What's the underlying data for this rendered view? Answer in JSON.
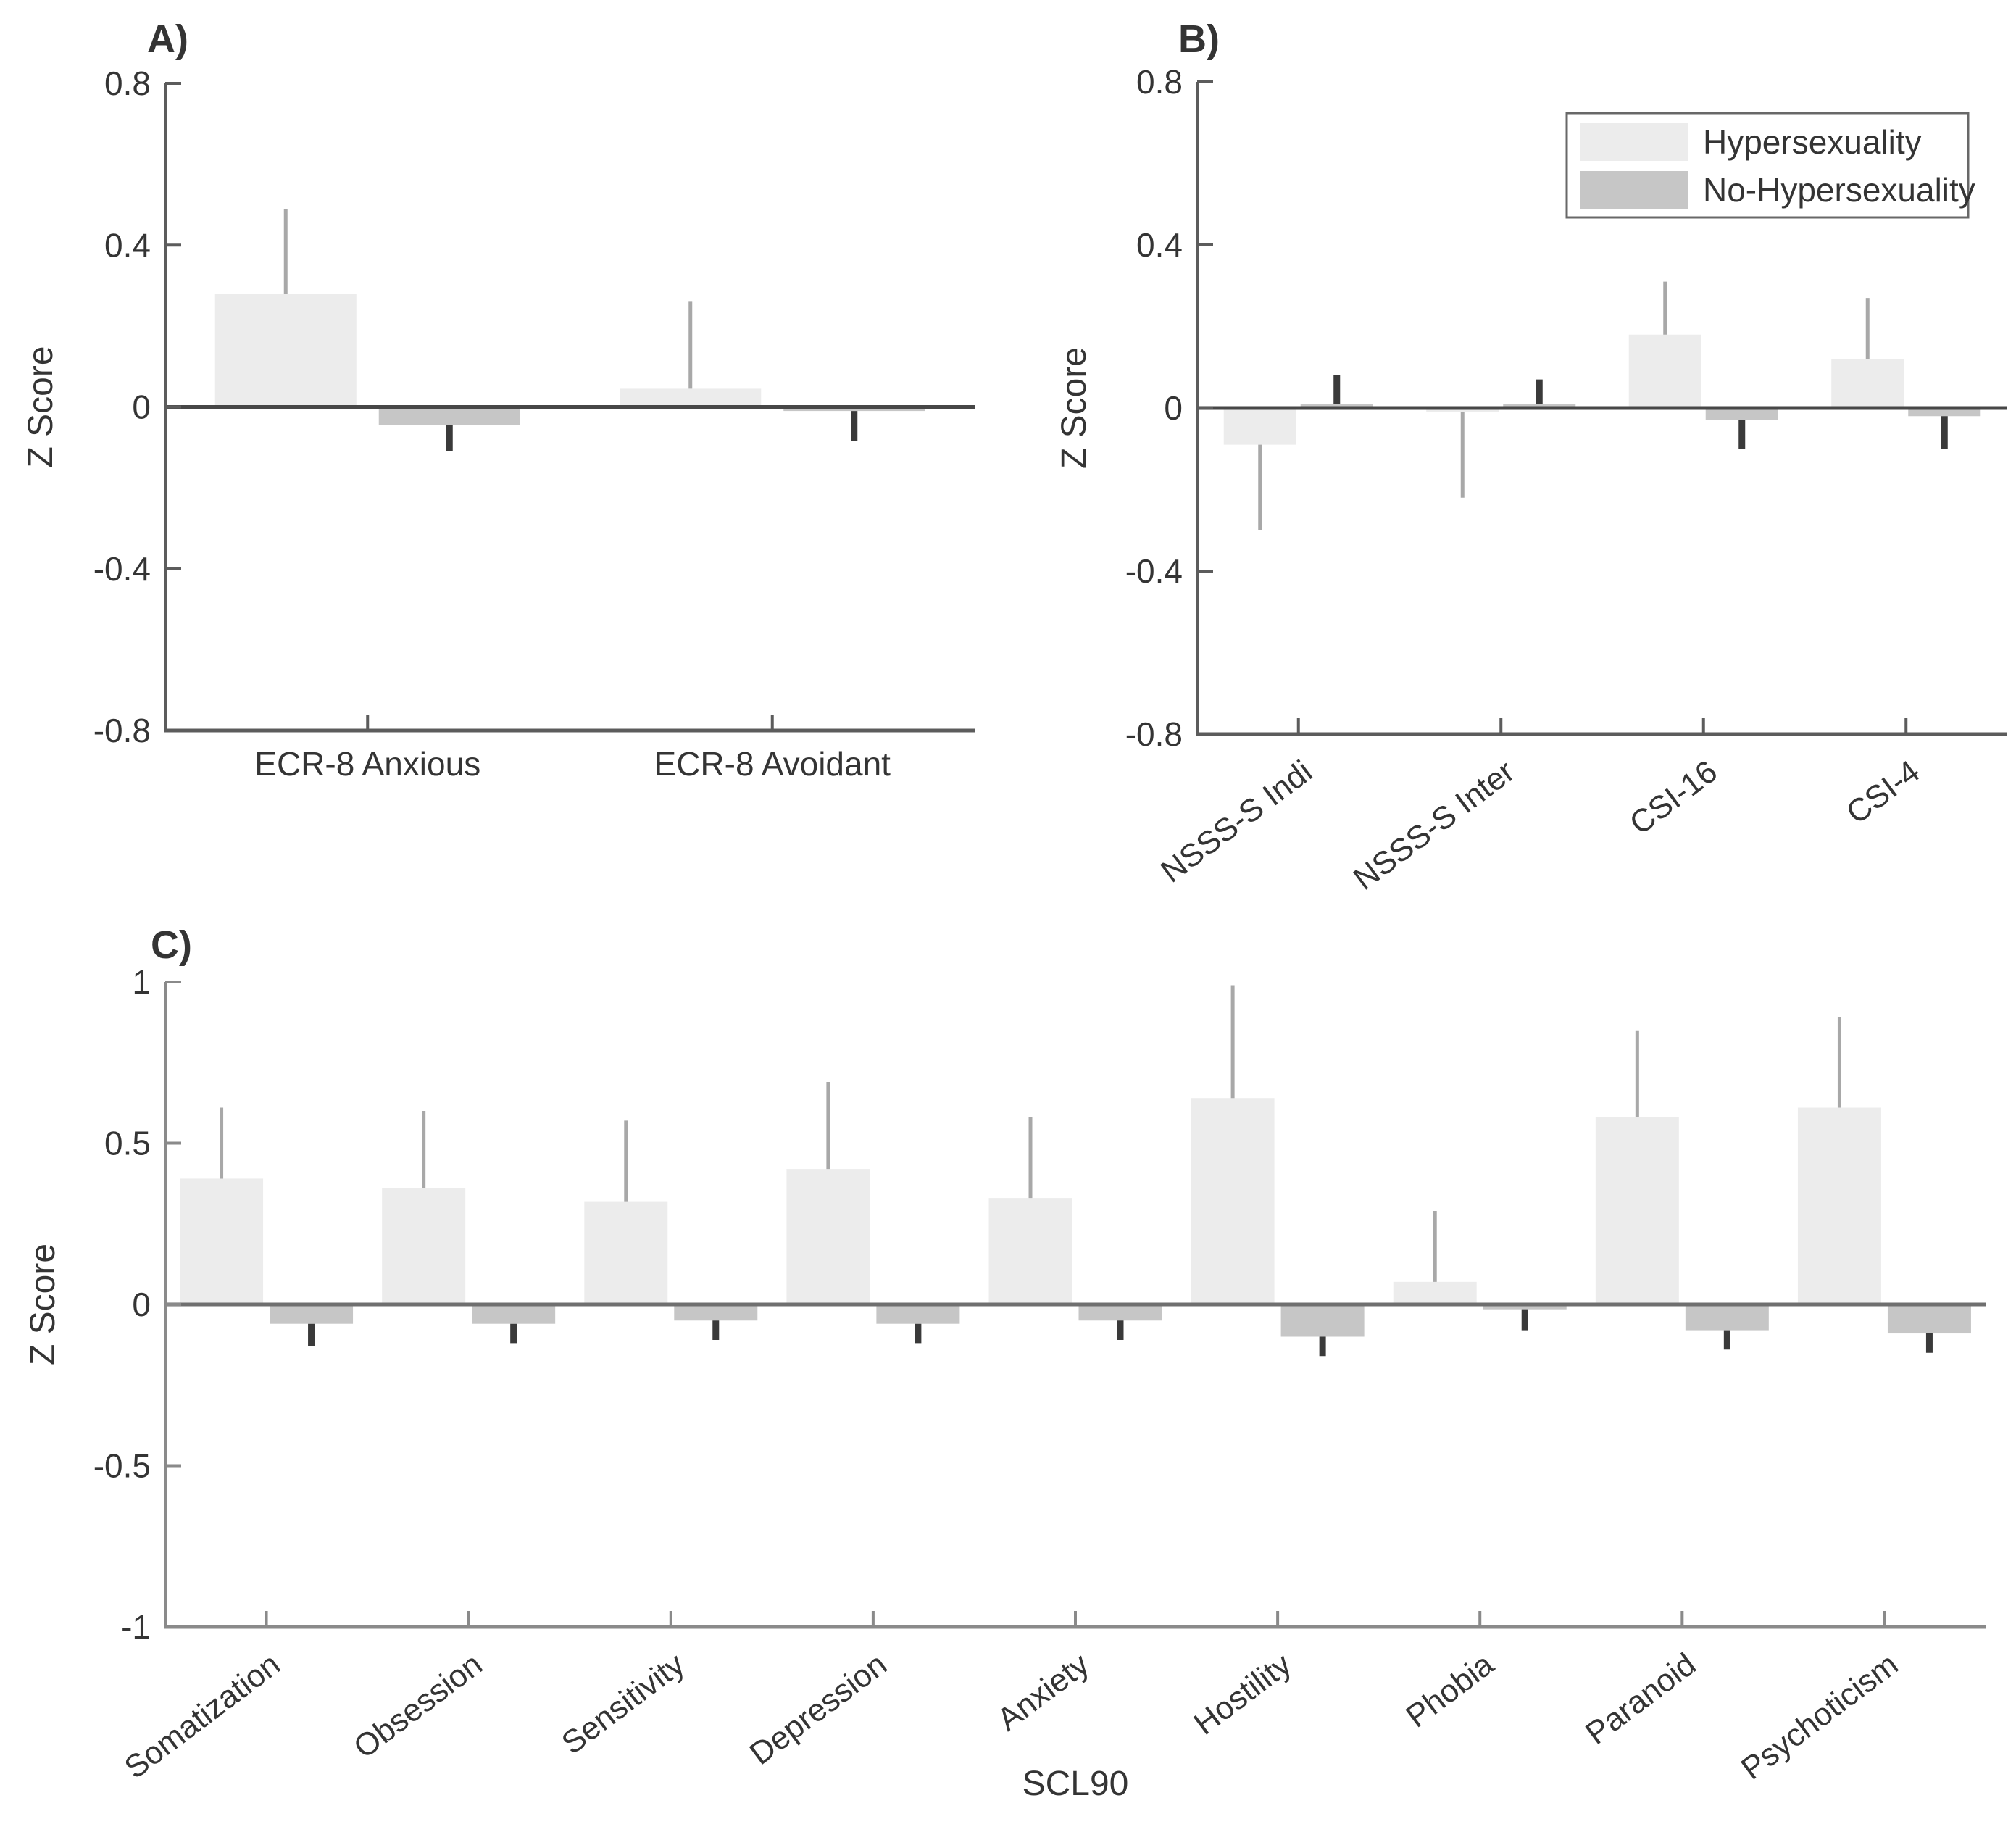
{
  "figure": {
    "background": "#ffffff",
    "text_color": "#343434",
    "series_colors": {
      "Hypersexuality": "#ececec",
      "No-Hypersexuality": "#c6c6c6"
    },
    "error_colors": {
      "Hypersexuality": "#a8a8a8",
      "No-Hypersexuality": "#3a3a3a"
    }
  },
  "legend": {
    "items": [
      {
        "label": "Hypersexuality",
        "color": "#ececec"
      },
      {
        "label": "No-Hypersexuality",
        "color": "#c6c6c6"
      }
    ]
  },
  "chart_data": [
    {
      "id": "A",
      "panel_label": "A)",
      "type": "bar",
      "ylabel": "Z Score",
      "xlabel": "",
      "ylim": [
        -0.8,
        0.8
      ],
      "yticks": [
        0.8,
        0.4,
        0,
        -0.4,
        -0.8
      ],
      "grid": false,
      "legend_visible": false,
      "categories": [
        "ECR-8 Anxious",
        "ECR-8 Avoidant"
      ],
      "series": [
        {
          "name": "Hypersexuality",
          "values": [
            0.28,
            0.045
          ],
          "error_tips": [
            0.49,
            0.26
          ]
        },
        {
          "name": "No-Hypersexuality",
          "values": [
            -0.045,
            -0.01
          ],
          "error_tips": [
            -0.11,
            -0.085
          ]
        }
      ]
    },
    {
      "id": "B",
      "panel_label": "B)",
      "type": "bar",
      "ylabel": "Z Score",
      "xlabel": "",
      "ylim": [
        -0.8,
        0.8
      ],
      "yticks": [
        0.8,
        0.4,
        0,
        -0.4,
        -0.8
      ],
      "grid": false,
      "legend_visible": true,
      "legend_position": "top-right",
      "categories": [
        "NSSS-S Indi",
        "NSSS-S Inter",
        "CSI-16",
        "CSI-4"
      ],
      "series": [
        {
          "name": "Hypersexuality",
          "values": [
            -0.09,
            -0.01,
            0.18,
            0.12
          ],
          "error_tips": [
            -0.3,
            -0.22,
            0.31,
            0.27
          ]
        },
        {
          "name": "No-Hypersexuality",
          "values": [
            0.01,
            0.01,
            -0.03,
            -0.02
          ],
          "error_tips": [
            0.08,
            0.07,
            -0.1,
            -0.1
          ]
        }
      ]
    },
    {
      "id": "C",
      "panel_label": "C)",
      "type": "bar",
      "ylabel": "Z Score",
      "xlabel": "SCL90",
      "ylim": [
        -1,
        1
      ],
      "yticks": [
        1,
        0.5,
        0,
        -0.5,
        -1
      ],
      "grid": false,
      "legend_visible": false,
      "categories": [
        "Somatization",
        "Obsession",
        "Sensitivity",
        "Depression",
        "Anxiety",
        "Hostility",
        "Phobia",
        "Paranoid",
        "Psychoticism"
      ],
      "series": [
        {
          "name": "Hypersexuality",
          "values": [
            0.39,
            0.36,
            0.32,
            0.42,
            0.33,
            0.64,
            0.07,
            0.58,
            0.61
          ],
          "error_tips": [
            0.61,
            0.6,
            0.57,
            0.69,
            0.58,
            0.99,
            0.29,
            0.85,
            0.89
          ]
        },
        {
          "name": "No-Hypersexuality",
          "values": [
            -0.06,
            -0.06,
            -0.05,
            -0.06,
            -0.05,
            -0.1,
            -0.015,
            -0.08,
            -0.09
          ],
          "error_tips": [
            -0.13,
            -0.12,
            -0.11,
            -0.12,
            -0.11,
            -0.16,
            -0.08,
            -0.14,
            -0.15
          ]
        }
      ]
    }
  ]
}
